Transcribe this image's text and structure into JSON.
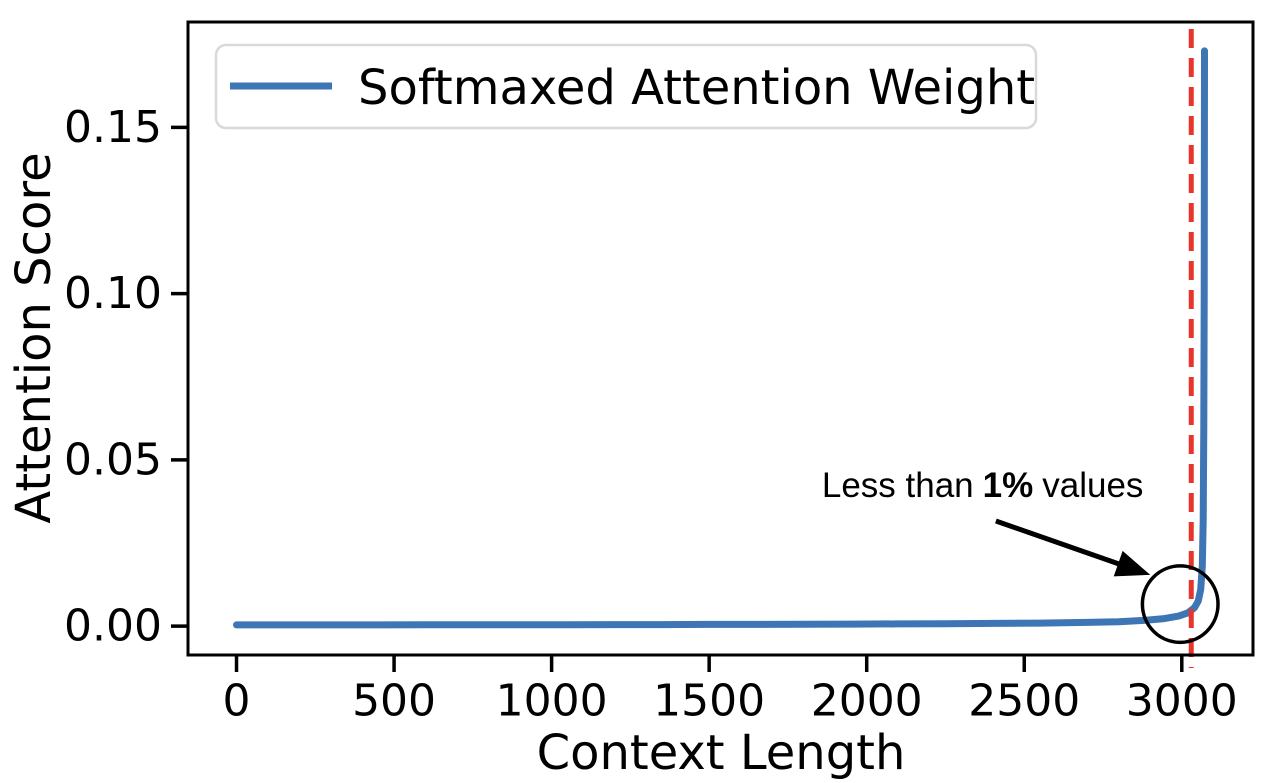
{
  "figure": {
    "background": "#ffffff",
    "border_color": "#000000"
  },
  "chart_data": {
    "type": "line",
    "title": "",
    "xlabel": "Context Length",
    "ylabel": "Attention Score",
    "xlim": [
      -154,
      3226
    ],
    "ylim": [
      -0.0087,
      0.1817
    ],
    "xticks": [
      0,
      500,
      1000,
      1500,
      2000,
      2500,
      3000
    ],
    "yticks": [
      0,
      0.05,
      0.1,
      0.15
    ],
    "ytick_labels": [
      "0.00",
      "0.05",
      "0.10",
      "0.15"
    ],
    "grid": false,
    "legend": {
      "position": "upper left",
      "entries": [
        {
          "label": "Softmaxed Attention Weight",
          "color": "#3d75b5"
        }
      ]
    },
    "series": [
      {
        "name": "Softmaxed Attention Weight",
        "color": "#3d75b5",
        "points": [
          [
            0,
            0.00035
          ],
          [
            150,
            0.00035
          ],
          [
            300,
            0.00035
          ],
          [
            450,
            0.00035
          ],
          [
            600,
            0.0004
          ],
          [
            750,
            0.0004
          ],
          [
            900,
            0.0004
          ],
          [
            1050,
            0.0004
          ],
          [
            1200,
            0.00045
          ],
          [
            1350,
            0.00045
          ],
          [
            1500,
            0.0005
          ],
          [
            1650,
            0.0005
          ],
          [
            1800,
            0.00055
          ],
          [
            1950,
            0.0006
          ],
          [
            2100,
            0.00065
          ],
          [
            2250,
            0.0007
          ],
          [
            2400,
            0.0008
          ],
          [
            2550,
            0.0009
          ],
          [
            2700,
            0.0011
          ],
          [
            2800,
            0.0013
          ],
          [
            2880,
            0.0017
          ],
          [
            2940,
            0.0022
          ],
          [
            2990,
            0.003
          ],
          [
            3020,
            0.004
          ],
          [
            3040,
            0.0055
          ],
          [
            3052,
            0.0075
          ],
          [
            3060,
            0.011
          ],
          [
            3065,
            0.018
          ],
          [
            3068,
            0.032
          ],
          [
            3070,
            0.06
          ],
          [
            3071,
            0.1
          ],
          [
            3072,
            0.173
          ]
        ]
      }
    ],
    "vline": {
      "x": 3030,
      "color": "#e8352b",
      "style": "dashed"
    },
    "annotation": {
      "text_before": "Less than",
      "text_bold": "1%",
      "text_after": "values",
      "text_xy": [
        2368,
        0.0424
      ],
      "arrow_from": [
        2410,
        0.0316
      ],
      "arrow_to": [
        2900,
        0.0154
      ],
      "circle_center": [
        2995,
        0.0066
      ],
      "circle_rx": 120,
      "circle_ry": 0.0115,
      "color": "#000000"
    }
  }
}
